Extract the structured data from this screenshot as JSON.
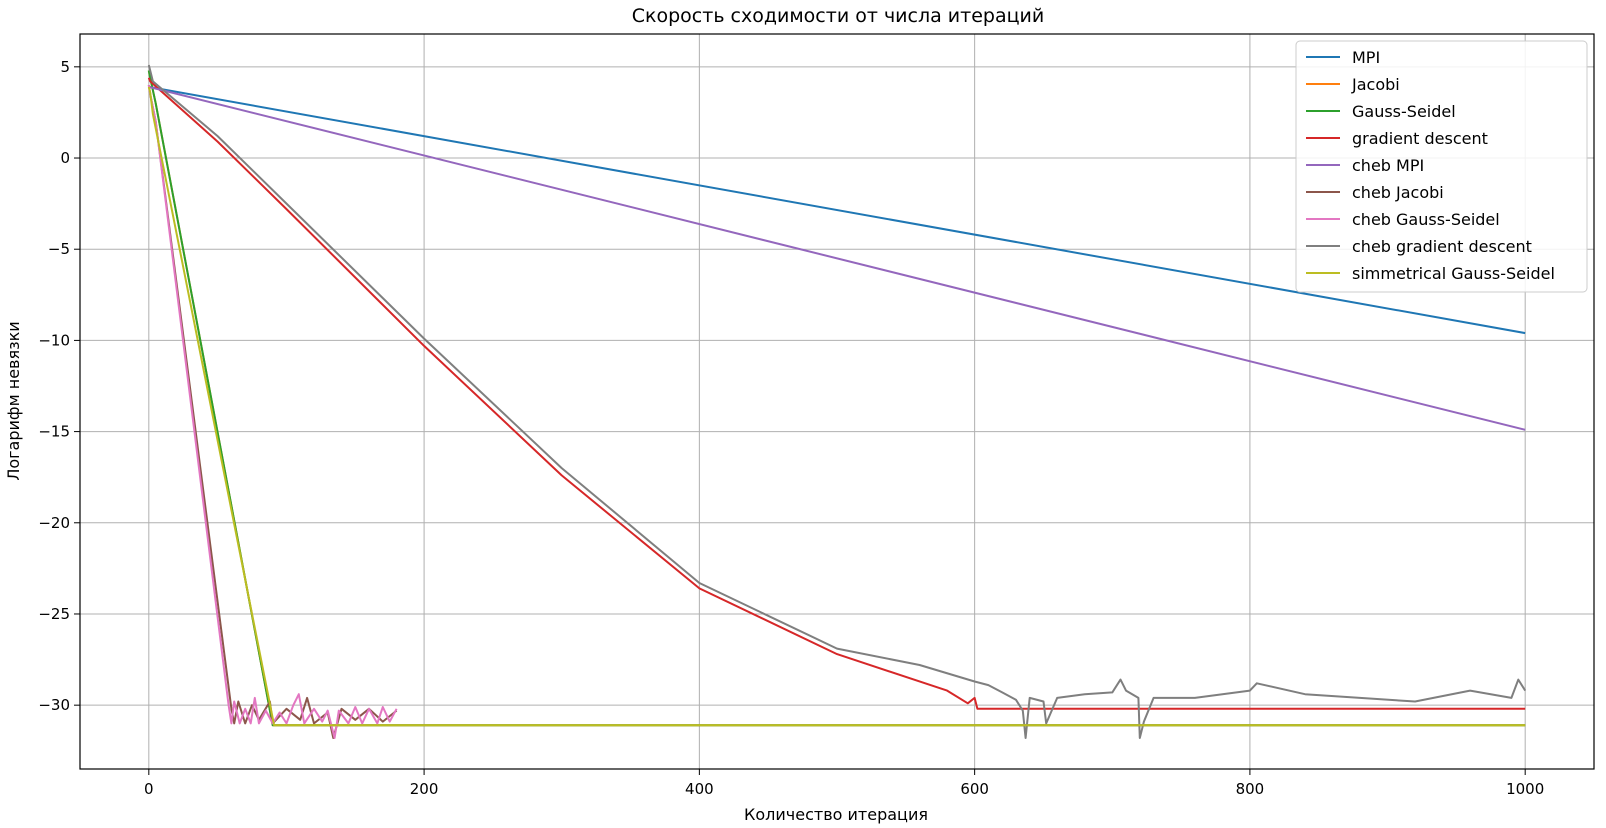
{
  "chart_data": {
    "type": "line",
    "title": "Скорость сходимости от числа итераций",
    "xlabel": "Количество итерация",
    "ylabel": "Логарифм невязки",
    "xlim": [
      -50,
      1050
    ],
    "ylim": [
      -33.5,
      6.8
    ],
    "xticks": [
      0,
      200,
      400,
      600,
      800,
      1000
    ],
    "yticks": [
      5,
      0,
      -5,
      -10,
      -15,
      -20,
      -25,
      -30
    ],
    "tick_labels": {
      "x": [
        "0",
        "200",
        "400",
        "600",
        "800",
        "1000"
      ],
      "y": [
        "5",
        "0",
        "−5",
        "−10",
        "−15",
        "−20",
        "−25",
        "−30"
      ]
    },
    "grid": true,
    "legend_position": "top-right",
    "series": [
      {
        "name": "MPI",
        "color": "#1f77b4",
        "points": [
          [
            0,
            3.9
          ],
          [
            1000,
            -9.6
          ]
        ]
      },
      {
        "name": "Jacobi",
        "color": "#ff7f0e",
        "points": [
          [
            0,
            4.8
          ],
          [
            1,
            4.4
          ],
          [
            5,
            3.0
          ],
          [
            90,
            -31.1
          ],
          [
            1000,
            -31.1
          ]
        ]
      },
      {
        "name": "Gauss-Seidel",
        "color": "#2ca02c",
        "points": [
          [
            0,
            4.8
          ],
          [
            1,
            4.4
          ],
          [
            5,
            3.0
          ],
          [
            90,
            -31.1
          ],
          [
            1000,
            -31.1
          ]
        ]
      },
      {
        "name": "gradient descent",
        "color": "#d62728",
        "points": [
          [
            0,
            4.4
          ],
          [
            1,
            4.2
          ],
          [
            50,
            0.9
          ],
          [
            100,
            -2.8
          ],
          [
            200,
            -10.3
          ],
          [
            300,
            -17.4
          ],
          [
            400,
            -23.6
          ],
          [
            500,
            -27.2
          ],
          [
            580,
            -29.2
          ],
          [
            595,
            -29.9
          ],
          [
            600,
            -29.6
          ],
          [
            602,
            -30.2
          ],
          [
            605,
            -30.2
          ],
          [
            1000,
            -30.2
          ]
        ]
      },
      {
        "name": "cheb MPI",
        "color": "#9467bd",
        "points": [
          [
            0,
            3.9
          ],
          [
            1000,
            -14.9
          ]
        ]
      },
      {
        "name": "cheb Jacobi",
        "color": "#8c564b",
        "points": [
          [
            0,
            4.0
          ],
          [
            1,
            3.5
          ],
          [
            5,
            2.0
          ],
          [
            60,
            -30.2
          ],
          [
            62,
            -31.0
          ],
          [
            65,
            -29.8
          ],
          [
            70,
            -31.0
          ],
          [
            75,
            -30.0
          ],
          [
            80,
            -30.8
          ],
          [
            88,
            -29.8
          ],
          [
            90,
            -31.0
          ],
          [
            100,
            -30.2
          ],
          [
            110,
            -30.8
          ],
          [
            115,
            -29.6
          ],
          [
            120,
            -31.0
          ],
          [
            130,
            -30.4
          ],
          [
            134,
            -31.8
          ],
          [
            140,
            -30.2
          ],
          [
            150,
            -30.8
          ],
          [
            160,
            -30.2
          ],
          [
            170,
            -30.9
          ],
          [
            180,
            -30.3
          ]
        ]
      },
      {
        "name": "cheb Gauss-Seidel",
        "color": "#e377c2",
        "points": [
          [
            0,
            4.0
          ],
          [
            1,
            3.5
          ],
          [
            5,
            2.0
          ],
          [
            58,
            -30.0
          ],
          [
            60,
            -31.0
          ],
          [
            62,
            -29.8
          ],
          [
            66,
            -31.0
          ],
          [
            70,
            -30.2
          ],
          [
            74,
            -31.0
          ],
          [
            77,
            -29.6
          ],
          [
            80,
            -31.0
          ],
          [
            85,
            -30.3
          ],
          [
            90,
            -31.0
          ],
          [
            95,
            -30.4
          ],
          [
            100,
            -31.0
          ],
          [
            105,
            -30.0
          ],
          [
            109,
            -29.4
          ],
          [
            113,
            -31.0
          ],
          [
            120,
            -30.2
          ],
          [
            126,
            -30.9
          ],
          [
            130,
            -30.3
          ],
          [
            135,
            -31.8
          ],
          [
            138,
            -30.3
          ],
          [
            145,
            -31.0
          ],
          [
            150,
            -30.1
          ],
          [
            155,
            -31.0
          ],
          [
            160,
            -30.2
          ],
          [
            166,
            -31.0
          ],
          [
            170,
            -30.1
          ],
          [
            175,
            -30.9
          ],
          [
            180,
            -30.2
          ]
        ]
      },
      {
        "name": "cheb gradient descent",
        "color": "#7f7f7f",
        "points": [
          [
            0,
            5.1
          ],
          [
            1,
            4.8
          ],
          [
            3,
            4.2
          ],
          [
            50,
            1.2
          ],
          [
            100,
            -2.5
          ],
          [
            200,
            -9.9
          ],
          [
            300,
            -17.0
          ],
          [
            400,
            -23.3
          ],
          [
            500,
            -26.9
          ],
          [
            560,
            -27.8
          ],
          [
            600,
            -28.7
          ],
          [
            610,
            -28.9
          ],
          [
            620,
            -29.3
          ],
          [
            630,
            -29.7
          ],
          [
            635,
            -30.3
          ],
          [
            637,
            -31.8
          ],
          [
            640,
            -29.6
          ],
          [
            650,
            -29.8
          ],
          [
            652,
            -31.0
          ],
          [
            660,
            -29.6
          ],
          [
            680,
            -29.4
          ],
          [
            700,
            -29.3
          ],
          [
            706,
            -28.6
          ],
          [
            710,
            -29.2
          ],
          [
            719,
            -29.6
          ],
          [
            720,
            -31.8
          ],
          [
            723,
            -30.9
          ],
          [
            730,
            -29.6
          ],
          [
            760,
            -29.6
          ],
          [
            800,
            -29.2
          ],
          [
            805,
            -28.8
          ],
          [
            840,
            -29.4
          ],
          [
            880,
            -29.6
          ],
          [
            920,
            -29.8
          ],
          [
            960,
            -29.2
          ],
          [
            990,
            -29.6
          ],
          [
            995,
            -28.6
          ],
          [
            1000,
            -29.2
          ]
        ]
      },
      {
        "name": "simmetrical Gauss-Seidel",
        "color": "#bcbd22",
        "points": [
          [
            0,
            3.9
          ],
          [
            1,
            3.6
          ],
          [
            3,
            2.4
          ],
          [
            91,
            -31.1
          ],
          [
            1000,
            -31.1
          ]
        ]
      }
    ]
  }
}
